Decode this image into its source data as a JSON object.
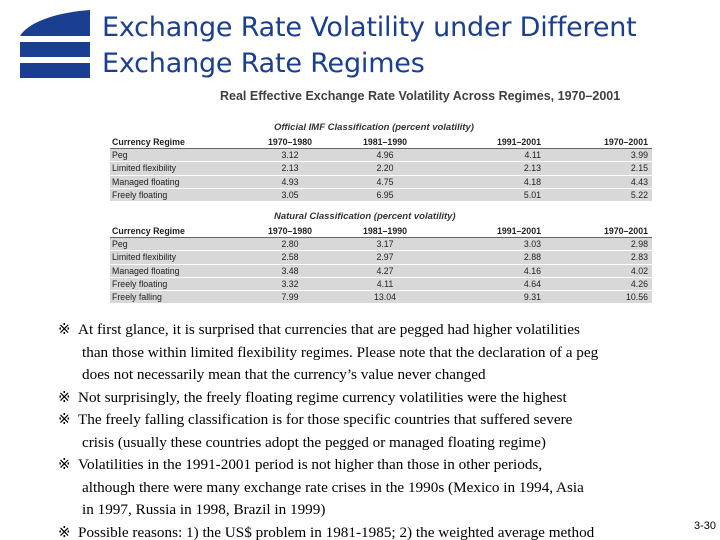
{
  "slide": {
    "title_lines": [
      "Exchange Rate Volatility under Different",
      "Exchange Rate Regimes"
    ],
    "page_number": "3-30"
  },
  "table": {
    "title": "Real Effective Exchange Rate Volatility Across Regimes, 1970–2001",
    "sections": [
      {
        "subtitle": "Official IMF Classification (percent volatility)",
        "header": [
          "Currency Regime",
          "1970–1980",
          "1981–1990",
          "1991–2001",
          "1970–2001"
        ],
        "rows": [
          [
            "Peg",
            "3.12",
            "4.96",
            "4.11",
            "3.99"
          ],
          [
            "Limited flexibility",
            "2.13",
            "2.20",
            "2.13",
            "2.15"
          ],
          [
            "Managed floating",
            "4.93",
            "4.75",
            "4.18",
            "4.43"
          ],
          [
            "Freely floating",
            "3.05",
            "6.95",
            "5.01",
            "5.22"
          ]
        ]
      },
      {
        "subtitle": "Natural Classification (percent volatility)",
        "header": [
          "Currency Regime",
          "1970–1980",
          "1981–1990",
          "1991–2001",
          "1970–2001"
        ],
        "rows": [
          [
            "Peg",
            "2.80",
            "3.17",
            "3.03",
            "2.98"
          ],
          [
            "Limited flexibility",
            "2.58",
            "2.97",
            "2.88",
            "2.83"
          ],
          [
            "Managed floating",
            "3.48",
            "4.27",
            "4.16",
            "4.02"
          ],
          [
            "Freely floating",
            "3.32",
            "4.11",
            "4.64",
            "4.26"
          ],
          [
            "Freely falling",
            "7.99",
            "13.04",
            "9.31",
            "10.56"
          ]
        ]
      }
    ]
  },
  "bullets": {
    "mark": "※",
    "items": [
      [
        "At first glance, it is surprised that currencies that are pegged had higher volatilities",
        "than those within limited flexibility regimes. Please note that the declaration of a peg",
        "does not necessarily mean that the currency’s value never changed"
      ],
      [
        "Not surprisingly, the freely floating regime currency volatilities were the highest"
      ],
      [
        "The freely falling classification is for those specific countries that suffered severe",
        "crisis (usually these countries adopt the pegged or managed floating regime)"
      ],
      [
        "Volatilities in the 1991-2001 period is not higher than those in other periods,",
        "although there were many exchange rate crises in the 1990s (Mexico in 1994, Asia",
        "in 1997,  Russia in 1998, Brazil in 1999)"
      ],
      [
        "Possible reasons: 1) the US$ problem in 1981-1985; 2) the weighted average method"
      ]
    ]
  },
  "colors": {
    "accent": "#1a3f91",
    "table_row": "#d8d8d8"
  }
}
